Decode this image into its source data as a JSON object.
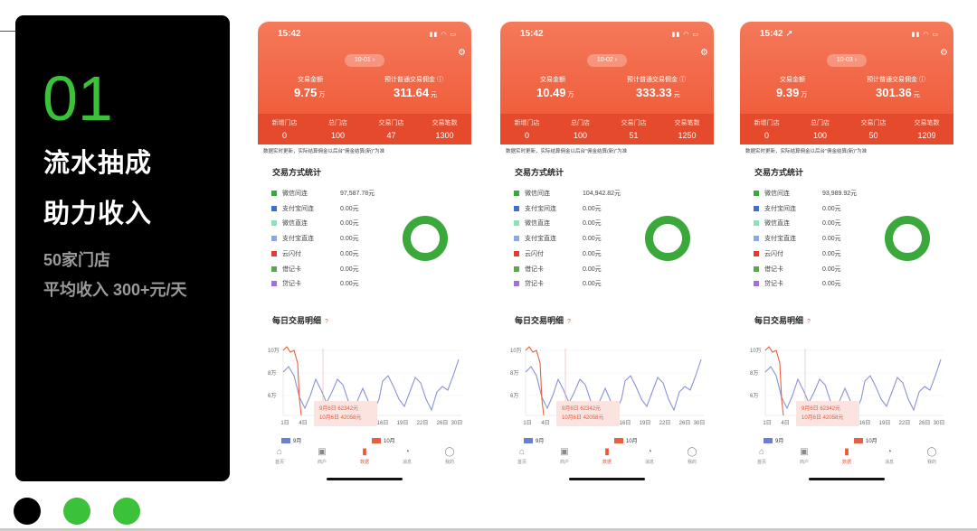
{
  "slide": {
    "number": "01",
    "headline1": "流水抽成",
    "headline2": "助力收入",
    "subline1": "50家门店",
    "subline2": "平均收入 300+元/天",
    "accent": "#3bc13a",
    "dots": [
      "#000000",
      "#3bc13a",
      "#3bc13a"
    ]
  },
  "common": {
    "amount_label": "交易金额",
    "commission_label": "预计普通交易佣金 ⓘ",
    "amount_unit": "万",
    "commission_unit": "元",
    "stat_labels": [
      "新增门店",
      "总门店",
      "交易门店",
      "交易笔数"
    ],
    "note": "数据实时更新，实际结算佣金以后台\"佣金结算(新)\"为准",
    "pay_title": "交易方式统计",
    "daily_title": "每日交易明细",
    "help_mark": "?",
    "pay_names": [
      "微信间连",
      "支付宝间连",
      "微信直连",
      "支付宝直连",
      "云闪付",
      "借记卡",
      "贷记卡"
    ],
    "pay_colors": [
      "#3aa83a",
      "#3a6fd8",
      "#8fe0b8",
      "#8aa8e8",
      "#e03a3a",
      "#5aa84a",
      "#a070e0"
    ],
    "y_ticks": [
      "10万",
      "8万",
      "6万"
    ],
    "x_ticks": [
      "1日",
      "4日",
      "7日",
      "10日",
      "13日",
      "16日",
      "19日",
      "22日",
      "26日",
      "30日"
    ],
    "tooltip_line1": "9月6日 62342元",
    "tooltip_line2": "10月6日 42058元",
    "legend": [
      "9月",
      "10月"
    ],
    "legend_colors": [
      "#6a7ed8",
      "#e86040"
    ],
    "tabs": [
      "首页",
      "商户",
      "数据",
      "消息",
      "我的"
    ],
    "tab_icons": [
      "⌂",
      "▣",
      "▮",
      "◔",
      "◯"
    ],
    "status_icons": "▮▮ ◠ ▭"
  },
  "phones": [
    {
      "time": "15:42",
      "date": "10-01 ›",
      "amount": "9.75",
      "commission": "311.64",
      "stats": [
        "0",
        "100",
        "47",
        "1300"
      ],
      "pay_amounts": [
        "97,587.78元",
        "0.00元",
        "0.00元",
        "0.00元",
        "0.00元",
        "0.00元",
        "0.00元"
      ]
    },
    {
      "time": "15:42",
      "date": "10-02 ›",
      "amount": "10.49",
      "commission": "333.33",
      "stats": [
        "0",
        "100",
        "51",
        "1250"
      ],
      "pay_amounts": [
        "104,942.82元",
        "0.00元",
        "0.00元",
        "0.00元",
        "0.00元",
        "0.00元",
        "0.00元"
      ]
    },
    {
      "time": "15:42 ➚",
      "date": "10-03 ›",
      "amount": "9.39",
      "commission": "301.36",
      "stats": [
        "0",
        "100",
        "50",
        "1209"
      ],
      "pay_amounts": [
        "93,989.92元",
        "0.00元",
        "0.00元",
        "0.00元",
        "0.00元",
        "0.00元",
        "0.00元"
      ]
    }
  ]
}
